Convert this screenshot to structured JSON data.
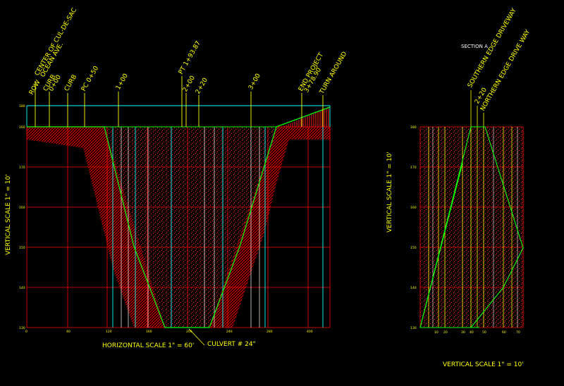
{
  "colors": {
    "background": "#000000",
    "grid": "#ff0000",
    "ground": "#00ff00",
    "station_lines": "#ffff00",
    "cyan_lines": "#00ffff",
    "labels": "#ffff00",
    "section_title": "#ffffff"
  },
  "profile": {
    "station_labels": [
      "ROW",
      "CENTER OF CUL-DE-SAC",
      "OCEAN AVE.",
      "CURB",
      "0+00",
      "CURB",
      "PC 0+50",
      "1+00",
      "PT 1+93.87",
      "2+00",
      "2+20",
      "3+00",
      "END PROJECT",
      "3+78.90",
      "TURN AROUND"
    ],
    "elev_ticks": [
      "180",
      "160",
      "170",
      "160",
      "150",
      "140",
      "130"
    ],
    "x_ticks": [
      "0",
      "40",
      "120",
      "160",
      "200",
      "240",
      "280",
      "400"
    ],
    "horizontal_scale": "HORIZONTAL SCALE 1\" = 60'",
    "vertical_scale": "VERTICAL SCALE 1\" = 10'",
    "culvert": "CULVERT # 24\""
  },
  "section": {
    "title": "SECTION A",
    "labels": [
      "SOUTHERN EDGE DRIVEWAY",
      "2+20",
      "NORTHERN EDGE DRIVE WAY"
    ],
    "elev_ticks": [
      "180",
      "170",
      "160",
      "150",
      "140",
      "130"
    ],
    "x_ticks": [
      "",
      "10",
      "20",
      "30",
      "40",
      "50",
      "60",
      "70"
    ],
    "vertical_scale_side": "VERTICAL SCALE 1\" = 10'",
    "vertical_scale_bottom": "VERTICAL SCALE 1\" = 10'"
  }
}
